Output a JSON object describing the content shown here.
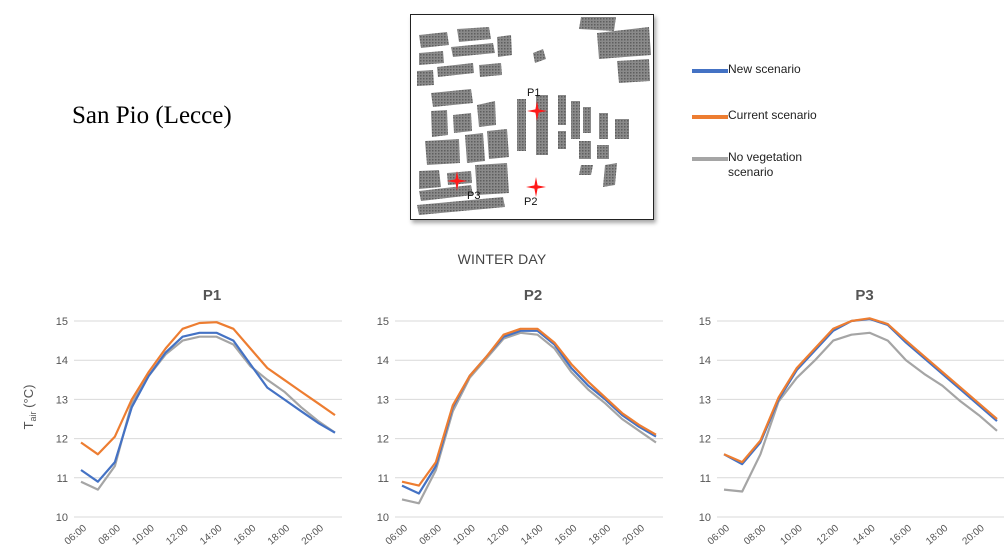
{
  "site_title": "San Pio (Lecce)",
  "section_title": "WINTER DAY",
  "map": {
    "points": [
      {
        "label": "P1",
        "color": "#ff1a1a"
      },
      {
        "label": "P2",
        "color": "#ff1a1a"
      },
      {
        "label": "P3",
        "color": "#ff1a1a"
      }
    ],
    "building_color": "#7f7f7f"
  },
  "legend": [
    {
      "label": "New scenario",
      "color": "#4472c4"
    },
    {
      "label": "Current scenario",
      "color": "#ed7d31"
    },
    {
      "label": "No vegetation scenario",
      "color": "#a5a5a5"
    }
  ],
  "ylabel_main": "T",
  "ylabel_sub": "air",
  "ylabel_unit": " (°C)",
  "chart_data": [
    {
      "type": "line",
      "title": "P1",
      "x": [
        "06:00",
        "07:00",
        "08:00",
        "09:00",
        "10:00",
        "11:00",
        "12:00",
        "13:00",
        "14:00",
        "15:00",
        "16:00",
        "17:00",
        "18:00",
        "19:00",
        "20:00",
        "21:00"
      ],
      "tick_labels": [
        "06:00",
        "08:00",
        "10:00",
        "12:00",
        "14:00",
        "16:00",
        "18:00",
        "20:00"
      ],
      "ylim": [
        10,
        15
      ],
      "yticks": [
        10,
        11,
        12,
        13,
        14,
        15
      ],
      "grid": true,
      "series": [
        {
          "name": "New scenario",
          "color": "#4472c4",
          "values": [
            11.2,
            10.9,
            11.4,
            12.8,
            13.6,
            14.2,
            14.6,
            14.7,
            14.7,
            14.5,
            13.9,
            13.3,
            13.0,
            12.7,
            12.4,
            12.15
          ]
        },
        {
          "name": "Current scenario",
          "color": "#ed7d31",
          "values": [
            11.9,
            11.6,
            12.05,
            13.0,
            13.7,
            14.3,
            14.8,
            14.95,
            14.97,
            14.8,
            14.3,
            13.8,
            13.5,
            13.2,
            12.9,
            12.6
          ]
        },
        {
          "name": "No vegetation scenario",
          "color": "#a5a5a5",
          "values": [
            10.9,
            10.7,
            11.3,
            12.9,
            13.6,
            14.15,
            14.5,
            14.6,
            14.6,
            14.4,
            13.85,
            13.5,
            13.2,
            12.8,
            12.45,
            12.15
          ]
        }
      ]
    },
    {
      "type": "line",
      "title": "P2",
      "x": [
        "06:00",
        "07:00",
        "08:00",
        "09:00",
        "10:00",
        "11:00",
        "12:00",
        "13:00",
        "14:00",
        "15:00",
        "16:00",
        "17:00",
        "18:00",
        "19:00",
        "20:00",
        "21:00"
      ],
      "tick_labels": [
        "06:00",
        "08:00",
        "10:00",
        "12:00",
        "14:00",
        "16:00",
        "18:00",
        "20:00"
      ],
      "ylim": [
        10,
        15
      ],
      "yticks": [
        10,
        11,
        12,
        13,
        14,
        15
      ],
      "grid": true,
      "series": [
        {
          "name": "New scenario",
          "color": "#4472c4",
          "values": [
            10.8,
            10.6,
            11.3,
            12.8,
            13.6,
            14.1,
            14.6,
            14.75,
            14.75,
            14.4,
            13.8,
            13.35,
            13.0,
            12.6,
            12.3,
            12.05
          ]
        },
        {
          "name": "Current scenario",
          "color": "#ed7d31",
          "values": [
            10.9,
            10.8,
            11.4,
            12.85,
            13.6,
            14.1,
            14.65,
            14.8,
            14.8,
            14.45,
            13.9,
            13.45,
            13.05,
            12.65,
            12.35,
            12.1
          ]
        },
        {
          "name": "No vegetation scenario",
          "color": "#a5a5a5",
          "values": [
            10.45,
            10.35,
            11.2,
            12.7,
            13.55,
            14.05,
            14.55,
            14.7,
            14.65,
            14.3,
            13.7,
            13.25,
            12.9,
            12.5,
            12.2,
            11.9
          ]
        }
      ]
    },
    {
      "type": "line",
      "title": "P3",
      "x": [
        "06:00",
        "07:00",
        "08:00",
        "09:00",
        "10:00",
        "11:00",
        "12:00",
        "13:00",
        "14:00",
        "15:00",
        "16:00",
        "17:00",
        "18:00",
        "19:00",
        "20:00",
        "21:00"
      ],
      "tick_labels": [
        "06:00",
        "08:00",
        "10:00",
        "12:00",
        "14:00",
        "16:00",
        "18:00",
        "20:00"
      ],
      "ylim": [
        10,
        15
      ],
      "yticks": [
        10,
        11,
        12,
        13,
        14,
        15
      ],
      "grid": true,
      "series": [
        {
          "name": "New scenario",
          "color": "#4472c4",
          "values": [
            11.6,
            11.35,
            11.9,
            13.0,
            13.75,
            14.25,
            14.75,
            15.0,
            15.05,
            14.9,
            14.45,
            14.05,
            13.65,
            13.25,
            12.85,
            12.45
          ]
        },
        {
          "name": "Current scenario",
          "color": "#ed7d31",
          "values": [
            11.6,
            11.4,
            11.95,
            13.05,
            13.8,
            14.3,
            14.8,
            15.0,
            15.07,
            14.92,
            14.5,
            14.1,
            13.7,
            13.3,
            12.9,
            12.5
          ]
        },
        {
          "name": "No vegetation scenario",
          "color": "#a5a5a5",
          "values": [
            10.7,
            10.65,
            11.6,
            12.95,
            13.55,
            14.0,
            14.5,
            14.65,
            14.7,
            14.5,
            14.0,
            13.65,
            13.35,
            12.95,
            12.6,
            12.2
          ]
        }
      ]
    }
  ]
}
